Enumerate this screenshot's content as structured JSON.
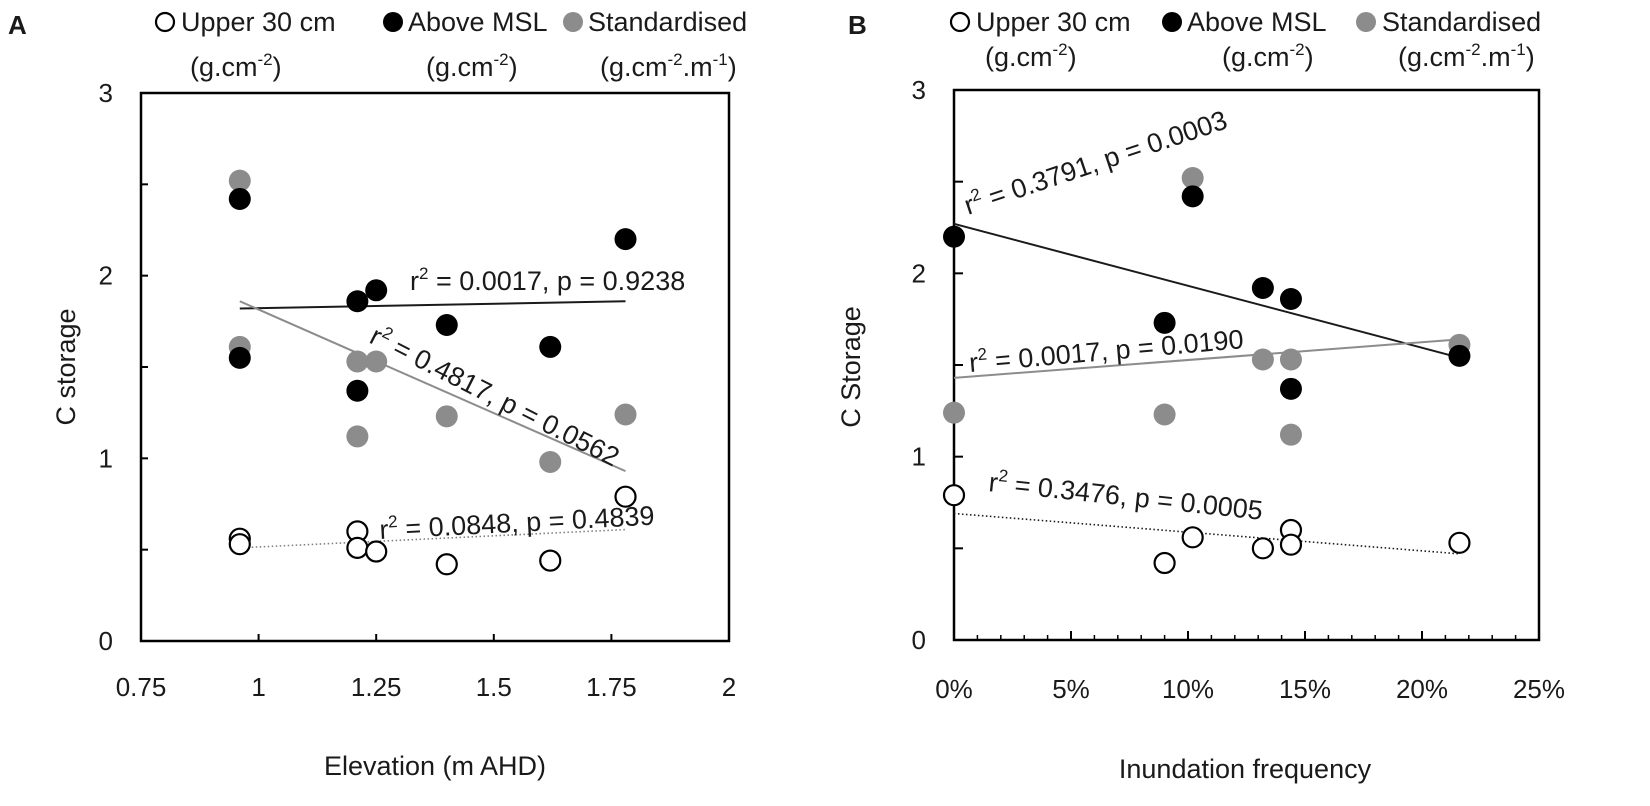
{
  "chart_data": [
    {
      "type": "scatter",
      "panel_label": "A",
      "legend": [
        {
          "name": "Upper 30 cm",
          "units_base": "(g.cm",
          "units_sup": "-2",
          "units_end": ")",
          "marker": "open",
          "units_sup2": "",
          "units_end2": ""
        },
        {
          "name": "Above MSL",
          "units_base": "(g.cm",
          "units_sup": "-2",
          "units_end": ")",
          "marker": "black",
          "units_sup2": "",
          "units_end2": ""
        },
        {
          "name": "Standardised",
          "units_base": "(g.cm",
          "units_sup": "-2",
          "units_end": ".m",
          "marker": "grey",
          "units_sup2": "-1",
          "units_end2": ")"
        }
      ],
      "xlabel": "Elevation (m AHD)",
      "ylabel": "C storage",
      "xlim": [
        0.75,
        2
      ],
      "ylim": [
        0,
        3
      ],
      "xticks": [
        0.75,
        1,
        1.25,
        1.5,
        1.75,
        2
      ],
      "xtick_labels": [
        "0.75",
        "1",
        "1.25",
        "1.5",
        "1.75",
        "2"
      ],
      "yticks": [
        0,
        1,
        2,
        3
      ],
      "ytick_labels": [
        "0",
        "1",
        "2",
        "3"
      ],
      "series": [
        {
          "name": "Upper 30 cm",
          "marker": "open",
          "x": [
            0.96,
            0.96,
            1.21,
            1.21,
            1.25,
            1.4,
            1.62,
            1.78
          ],
          "y": [
            0.56,
            0.53,
            0.6,
            0.51,
            0.49,
            0.42,
            0.44,
            0.79
          ]
        },
        {
          "name": "Above MSL",
          "marker": "black",
          "x": [
            0.96,
            0.96,
            1.21,
            1.21,
            1.25,
            1.4,
            1.62,
            1.78
          ],
          "y": [
            2.42,
            1.55,
            1.86,
            1.37,
            1.92,
            1.73,
            1.61,
            2.2
          ]
        },
        {
          "name": "Standardised",
          "marker": "grey",
          "x": [
            0.96,
            0.96,
            1.21,
            1.21,
            1.25,
            1.4,
            1.62,
            1.78
          ],
          "y": [
            2.52,
            1.61,
            1.53,
            1.12,
            1.53,
            1.23,
            0.98,
            1.24
          ]
        }
      ],
      "trendlines": [
        {
          "series": "Above MSL",
          "color": "#1a1a1a",
          "style": "solid",
          "x": [
            0.96,
            1.78
          ],
          "y": [
            1.82,
            1.86
          ]
        },
        {
          "series": "Standardised",
          "color": "#8c8c8c",
          "style": "solid",
          "x": [
            0.96,
            1.78
          ],
          "y": [
            1.86,
            0.93
          ]
        },
        {
          "series": "Upper 30 cm",
          "color": "#808080",
          "style": "dotted",
          "x": [
            0.96,
            1.78
          ],
          "y": [
            0.51,
            0.61
          ]
        }
      ],
      "annotations": [
        {
          "r2": "0.0017",
          "p": "0.9238"
        },
        {
          "r2": "0.4817",
          "p": "0.0562"
        },
        {
          "r2": "0.0848",
          "p": "0.4839"
        }
      ]
    },
    {
      "type": "scatter",
      "panel_label": "B",
      "legend": [
        {
          "name": "Upper 30 cm",
          "units_base": "(g.cm",
          "units_sup": "-2",
          "units_end": ")",
          "marker": "open",
          "units_sup2": "",
          "units_end2": ""
        },
        {
          "name": "Above MSL",
          "units_base": "(g.cm",
          "units_sup": "-2",
          "units_end": ")",
          "marker": "black",
          "units_sup2": "",
          "units_end2": ""
        },
        {
          "name": "Standardised",
          "units_base": "(g.cm",
          "units_sup": "-2",
          "units_end": ".m",
          "marker": "grey",
          "units_sup2": "-1",
          "units_end2": ")"
        }
      ],
      "xlabel": "Inundation frequency",
      "ylabel": "C Storage",
      "xlim": [
        0,
        25
      ],
      "ylim": [
        0,
        3
      ],
      "xticks": [
        0,
        5,
        10,
        15,
        20,
        25
      ],
      "xtick_labels": [
        "0%",
        "5%",
        "10%",
        "15%",
        "20%",
        "25%"
      ],
      "yticks": [
        0,
        1,
        2,
        3
      ],
      "ytick_labels": [
        "0",
        "1",
        "2",
        "3"
      ],
      "series": [
        {
          "name": "Upper 30 cm",
          "marker": "open",
          "x": [
            0,
            9,
            10.2,
            13.2,
            14.4,
            14.4,
            21.6
          ],
          "y": [
            0.79,
            0.42,
            0.56,
            0.5,
            0.6,
            0.52,
            0.53
          ]
        },
        {
          "name": "Above MSL",
          "marker": "black",
          "x": [
            0,
            9,
            10.2,
            13.2,
            14.4,
            14.4,
            21.6
          ],
          "y": [
            2.2,
            1.73,
            2.42,
            1.92,
            1.86,
            1.37,
            1.55
          ]
        },
        {
          "name": "Standardised",
          "marker": "grey",
          "x": [
            0,
            9,
            10.2,
            13.2,
            14.4,
            14.4,
            21.6
          ],
          "y": [
            1.24,
            1.23,
            2.52,
            1.53,
            1.53,
            1.12,
            1.61
          ]
        }
      ],
      "trendlines": [
        {
          "series": "Above MSL",
          "color": "#1a1a1a",
          "style": "solid",
          "x": [
            0,
            21.6
          ],
          "y": [
            2.27,
            1.54
          ]
        },
        {
          "series": "Standardised",
          "color": "#8c8c8c",
          "style": "solid",
          "x": [
            0,
            21.6
          ],
          "y": [
            1.43,
            1.64
          ]
        },
        {
          "series": "Upper 30 cm",
          "color": "#1a1a1a",
          "style": "dotted",
          "x": [
            0,
            21.6
          ],
          "y": [
            0.69,
            0.47
          ]
        }
      ],
      "annotations": [
        {
          "r2": "0.3791",
          "p": "0.0003"
        },
        {
          "r2": "0.0017",
          "p": "0.0190"
        },
        {
          "r2": "0.3476",
          "p": "0.0005"
        }
      ]
    }
  ],
  "colors": {
    "black_marker": "#000000",
    "grey_marker": "#8c8c8c",
    "axis": "#000000"
  }
}
